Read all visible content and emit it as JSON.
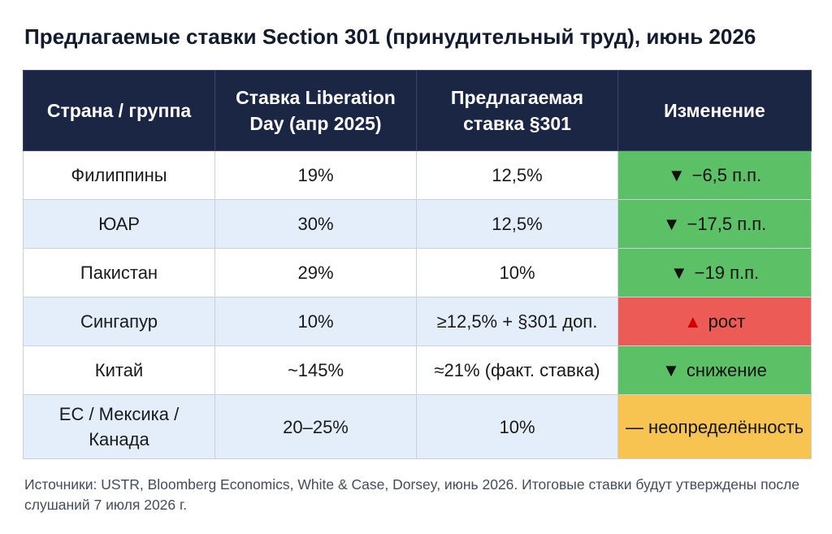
{
  "title": "Предлагаемые ставки Section 301 (принудительный труд), июнь 2026",
  "table": {
    "headers": [
      "Страна / группа",
      "Ставка Liberation Day (апр 2025)",
      "Предлагаемая ставка §301",
      "Изменение"
    ],
    "rows": [
      {
        "country": "Филиппины",
        "old": "19%",
        "proposed": "12,5%",
        "arrow": "▼",
        "change": "−6,5 п.п.",
        "change_color": "#5cc166"
      },
      {
        "country": "ЮАР",
        "old": "30%",
        "proposed": "12,5%",
        "arrow": "▼",
        "change": "−17,5 п.п.",
        "change_color": "#5cc166"
      },
      {
        "country": "Пакистан",
        "old": "29%",
        "proposed": "10%",
        "arrow": "▼",
        "change": "−19 п.п.",
        "change_color": "#5cc166"
      },
      {
        "country": "Сингапур",
        "old": "10%",
        "proposed": "≥12,5% + §301 доп.",
        "arrow": "▲",
        "change": "рост",
        "change_color": "#ec5b56",
        "arrow_color": "#d40000"
      },
      {
        "country": "Китай",
        "old": "~145%",
        "proposed": "≈21% (факт. ставка)",
        "arrow": "▼",
        "change": "снижение",
        "change_color": "#5cc166"
      },
      {
        "country": "ЕС / Мексика / Канада",
        "old": "20–25%",
        "proposed": "10%",
        "arrow": "",
        "change": "— неопределённость",
        "change_color": "#f7c451"
      }
    ]
  },
  "footnote": "Источники: USTR, Bloomberg Economics, White & Case, Dorsey, июнь 2026. Итоговые ставки будут утверждены после слушаний 7 июля 2026 г."
}
